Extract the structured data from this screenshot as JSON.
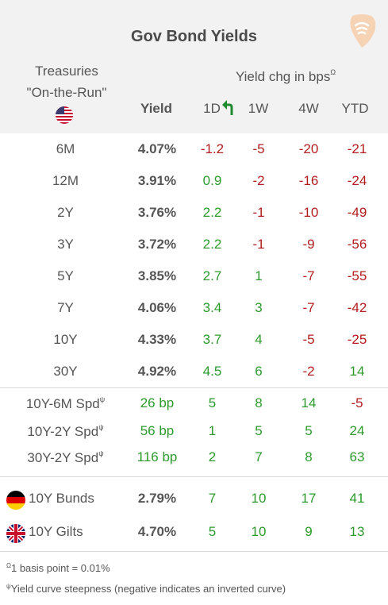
{
  "title": "Gov Bond Yields",
  "header": {
    "treasuries_line1": "Treasuries",
    "treasuries_line2": "\"On-the-Run\"",
    "yield_chg_label": "Yield chg in bps",
    "yield_chg_sup": "Ω",
    "col_yield": "Yield",
    "col_1d": "1D",
    "col_1w": "1W",
    "col_4w": "4W",
    "col_ytd": "YTD"
  },
  "chart_data": {
    "type": "table",
    "title": "Gov Bond Yields",
    "columns": [
      "Yield",
      "1D",
      "1W",
      "4W",
      "YTD"
    ],
    "treasuries": [
      {
        "label": "6M",
        "yield": "4.07%",
        "d1": "-1.2",
        "w1": "-5",
        "w4": "-20",
        "ytd": "-21"
      },
      {
        "label": "12M",
        "yield": "3.91%",
        "d1": "0.9",
        "w1": "-2",
        "w4": "-16",
        "ytd": "-24"
      },
      {
        "label": "2Y",
        "yield": "3.76%",
        "d1": "2.2",
        "w1": "-1",
        "w4": "-10",
        "ytd": "-49"
      },
      {
        "label": "3Y",
        "yield": "3.72%",
        "d1": "2.2",
        "w1": "-1",
        "w4": "-9",
        "ytd": "-56"
      },
      {
        "label": "5Y",
        "yield": "3.85%",
        "d1": "2.7",
        "w1": "1",
        "w4": "-7",
        "ytd": "-55"
      },
      {
        "label": "7Y",
        "yield": "4.06%",
        "d1": "3.4",
        "w1": "3",
        "w4": "-7",
        "ytd": "-42"
      },
      {
        "label": "10Y",
        "yield": "4.33%",
        "d1": "3.7",
        "w1": "4",
        "w4": "-5",
        "ytd": "-25"
      },
      {
        "label": "30Y",
        "yield": "4.92%",
        "d1": "4.5",
        "w1": "6",
        "w4": "-2",
        "ytd": "14"
      }
    ],
    "spreads": [
      {
        "label": "10Y-6M Spd",
        "sup": "ψ",
        "yield": "26 bp",
        "d1": "5",
        "w1": "8",
        "w4": "14",
        "ytd": "-5"
      },
      {
        "label": "10Y-2Y Spd",
        "sup": "ψ",
        "yield": "56 bp",
        "d1": "1",
        "w1": "5",
        "w4": "5",
        "ytd": "24"
      },
      {
        "label": "30Y-2Y Spd",
        "sup": "ψ",
        "yield": "116 bp",
        "d1": "2",
        "w1": "7",
        "w4": "8",
        "ytd": "63"
      }
    ],
    "international": [
      {
        "label": "10Y Bunds",
        "flag": "germany-flag",
        "yield": "2.79%",
        "d1": "7",
        "w1": "10",
        "w4": "17",
        "ytd": "41"
      },
      {
        "label": "10Y Gilts",
        "flag": "uk-flag",
        "yield": "4.70%",
        "d1": "5",
        "w1": "10",
        "w4": "9",
        "ytd": "13"
      }
    ]
  },
  "footnotes": {
    "note1_sup": "Ω",
    "note1": "1 basis point = 0.01%",
    "note2_sup": "ψ",
    "note2": "Yield curve steepness (negative indicates an inverted curve)"
  },
  "colors": {
    "positive": "#2e9a2e",
    "negative": "#b21e1e",
    "header_bg": "#f2f2f2",
    "logo": "#f5c9a8"
  },
  "icons": {
    "logo": "wifi-signal-logo-icon",
    "us_flag": "us-flag-icon",
    "trend_arrow": "green-up-left-arrow-icon"
  }
}
